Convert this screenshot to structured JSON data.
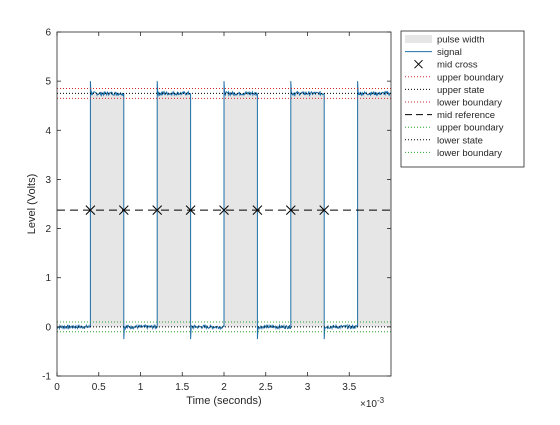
{
  "chart_data": {
    "type": "line",
    "title": "",
    "xlabel": "Time (seconds)",
    "ylabel": "Level (Volts)",
    "x_exponent_label": "×10",
    "x_exponent_power": "-3",
    "xlim": [
      0,
      4.0
    ],
    "ylim": [
      -1,
      6
    ],
    "x_ticks": [
      0,
      0.5,
      1,
      1.5,
      2,
      2.5,
      3,
      3.5
    ],
    "x_tick_labels": [
      "0",
      "0.5",
      "1",
      "1.5",
      "2",
      "2.5",
      "3",
      "3.5"
    ],
    "y_ticks": [
      -1,
      0,
      1,
      2,
      3,
      4,
      5,
      6
    ],
    "y_tick_labels": [
      "-1",
      "0",
      "1",
      "2",
      "3",
      "4",
      "5",
      "6"
    ],
    "grid": false,
    "legend_position": "top-right outside",
    "signal": {
      "low_level": 0.0,
      "high_level": 4.75,
      "pulses": [
        {
          "rise": 0.4,
          "fall": 0.8
        },
        {
          "rise": 1.2,
          "fall": 1.6
        },
        {
          "rise": 2.0,
          "fall": 2.4
        },
        {
          "rise": 2.8,
          "fall": 3.2
        },
        {
          "rise": 3.6,
          "fall": 4.0
        }
      ],
      "rise_overshoot": 5.0,
      "fall_undershoot": -0.25,
      "color": "#1f6fa8"
    },
    "pulse_width_fill": "#e6e6e6",
    "mid_reference": 2.375,
    "mid_cross_x": [
      0.4,
      0.8,
      1.2,
      1.6,
      2.0,
      2.4,
      2.8,
      3.2
    ],
    "upper_state": 4.75,
    "upper_boundary_high": 4.85,
    "upper_boundary_low": 4.65,
    "lower_state": 0.0,
    "lower_boundary_high": 0.1,
    "lower_boundary_low": -0.1,
    "legend": [
      {
        "key": "pulse-width",
        "label": "pulse width",
        "style": "patch",
        "color": "#e6e6e6"
      },
      {
        "key": "signal",
        "label": "signal",
        "style": "line",
        "color": "#1f6fa8"
      },
      {
        "key": "mid-cross",
        "label": "mid cross",
        "style": "marker",
        "color": "#000000"
      },
      {
        "key": "upper-boundary-1",
        "label": "upper boundary",
        "style": "dotted",
        "color": "#d62728"
      },
      {
        "key": "upper-state",
        "label": "upper state",
        "style": "dotted",
        "color": "#000000"
      },
      {
        "key": "lower-boundary-1",
        "label": "lower boundary",
        "style": "dotted",
        "color": "#d62728"
      },
      {
        "key": "mid-reference",
        "label": "mid reference",
        "style": "dashed",
        "color": "#000000"
      },
      {
        "key": "upper-boundary-2",
        "label": "upper boundary",
        "style": "dotted",
        "color": "#2ca02c"
      },
      {
        "key": "lower-state",
        "label": "lower state",
        "style": "dotted",
        "color": "#000000"
      },
      {
        "key": "lower-boundary-2",
        "label": "lower boundary",
        "style": "dotted",
        "color": "#2ca02c"
      }
    ]
  }
}
